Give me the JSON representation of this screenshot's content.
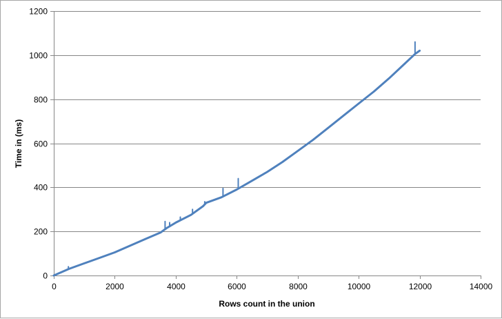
{
  "chart_data": {
    "type": "line",
    "title": "",
    "xlabel": "Rows count in the union",
    "ylabel": "Time in (ms)",
    "xlim": [
      0,
      14000
    ],
    "ylim": [
      0,
      1200
    ],
    "x_ticks": [
      0,
      2000,
      4000,
      6000,
      8000,
      10000,
      12000,
      14000
    ],
    "y_ticks": [
      0,
      200,
      400,
      600,
      800,
      1000,
      1200
    ],
    "grid": "horizontal",
    "legend": "none",
    "series": [
      {
        "color": "#4f81bd",
        "x": [
          0,
          500,
          1000,
          1500,
          2000,
          2500,
          3000,
          3500,
          3700,
          4000,
          4500,
          4900,
          5000,
          5500,
          6000,
          6500,
          7000,
          7500,
          8000,
          8500,
          9000,
          9500,
          10000,
          10500,
          11000,
          11500,
          11850,
          12000
        ],
        "y": [
          0,
          30,
          55,
          80,
          105,
          135,
          165,
          195,
          215,
          240,
          275,
          315,
          330,
          355,
          390,
          430,
          470,
          515,
          565,
          615,
          670,
          725,
          780,
          835,
          895,
          960,
          1005,
          1020
        ]
      }
    ],
    "spikes": [
      {
        "x": 480,
        "y": 40
      },
      {
        "x": 3650,
        "y": 245
      },
      {
        "x": 3800,
        "y": 240
      },
      {
        "x": 4150,
        "y": 265
      },
      {
        "x": 4550,
        "y": 300
      },
      {
        "x": 4950,
        "y": 335
      },
      {
        "x": 5550,
        "y": 395
      },
      {
        "x": 6050,
        "y": 440
      },
      {
        "x": 11850,
        "y": 1060
      }
    ]
  }
}
